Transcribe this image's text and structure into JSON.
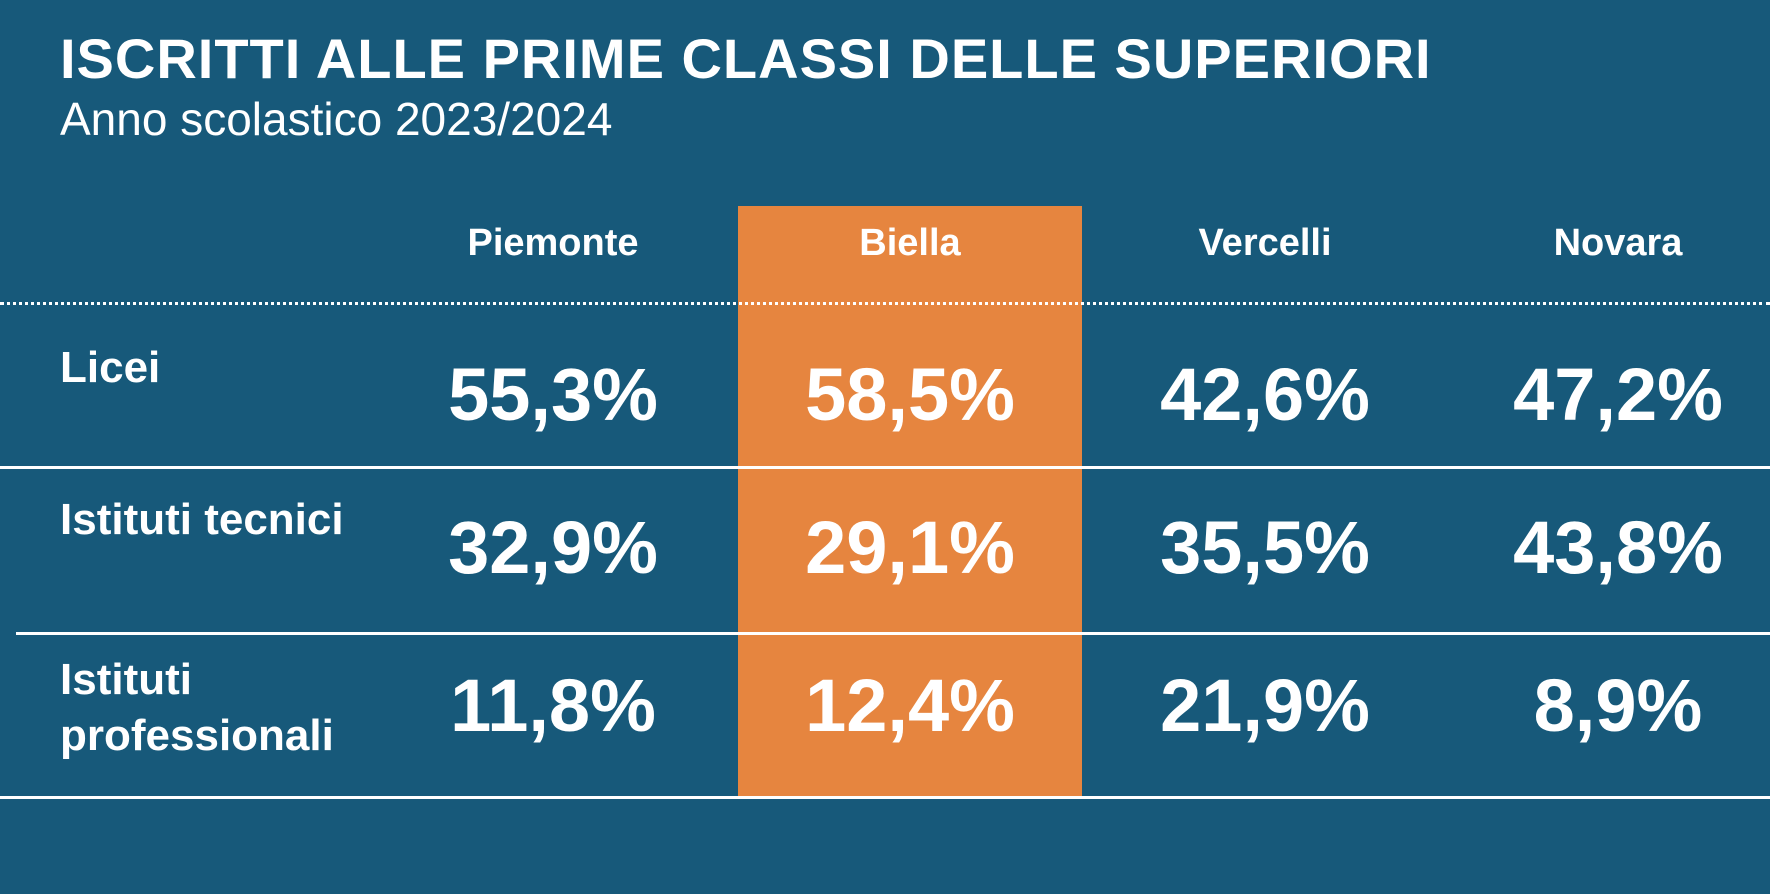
{
  "title": "ISCRITTI ALLE PRIME CLASSI DELLE SUPERIORI",
  "subtitle": "Anno scolastico 2023/2024",
  "colors": {
    "background": "#17597a",
    "highlight": "#e6853f",
    "text": "#ffffff"
  },
  "chart_data": {
    "type": "table",
    "columns": [
      "Piemonte",
      "Biella",
      "Vercelli",
      "Novara"
    ],
    "highlighted_column": "Biella",
    "rows": [
      {
        "label": "Licei",
        "values": [
          "55,3%",
          "58,5%",
          "42,6%",
          "47,2%"
        ]
      },
      {
        "label": "Istituti tecnici",
        "values": [
          "32,9%",
          "29,1%",
          "35,5%",
          "43,8%"
        ]
      },
      {
        "label": "Istituti professionali",
        "values": [
          "11,8%",
          "12,4%",
          "21,9%",
          "8,9%"
        ]
      }
    ]
  }
}
